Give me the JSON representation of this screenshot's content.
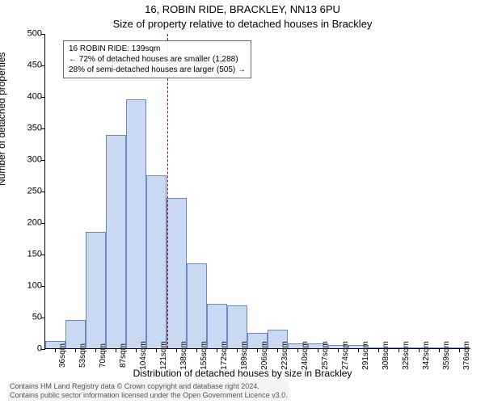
{
  "title_line1": "16, ROBIN RIDE, BRACKLEY, NN13 6PU",
  "title_line2": "Size of property relative to detached houses in Brackley",
  "ylabel": "Number of detached properties",
  "xlabel": "Distribution of detached houses by size in Brackley",
  "attribution_line1": "Contains HM Land Registry data © Crown copyright and database right 2024.",
  "attribution_line2": "Contains public sector information licensed under the Open Government Licence v3.0.",
  "chart": {
    "type": "histogram",
    "ylim": [
      0,
      500
    ],
    "ytick_step": 50,
    "xtick_start": 36,
    "xtick_step": 17,
    "xtick_count": 21,
    "xtick_unit": "sqm",
    "bar_color": "#c9d9f2",
    "bar_border": "#6a88c4",
    "reference_line_value": 139,
    "reference_line_color": "#d00000",
    "annotation": {
      "line1": "16 ROBIN RIDE: 139sqm",
      "line2": "← 72% of detached houses are smaller (1,288)",
      "line3": "28% of semi-detached houses are larger (505) →"
    },
    "bars": [
      {
        "x": 36,
        "y": 12
      },
      {
        "x": 53,
        "y": 45
      },
      {
        "x": 70,
        "y": 185
      },
      {
        "x": 86,
        "y": 338
      },
      {
        "x": 103,
        "y": 395
      },
      {
        "x": 120,
        "y": 275
      },
      {
        "x": 137,
        "y": 238
      },
      {
        "x": 154,
        "y": 135
      },
      {
        "x": 171,
        "y": 70
      },
      {
        "x": 187,
        "y": 68
      },
      {
        "x": 204,
        "y": 25
      },
      {
        "x": 221,
        "y": 30
      },
      {
        "x": 238,
        "y": 8
      },
      {
        "x": 255,
        "y": 8
      },
      {
        "x": 272,
        "y": 5
      },
      {
        "x": 288,
        "y": 5
      },
      {
        "x": 305,
        "y": 0
      },
      {
        "x": 322,
        "y": 0
      },
      {
        "x": 339,
        "y": 0
      },
      {
        "x": 356,
        "y": 0
      },
      {
        "x": 373,
        "y": 0
      }
    ]
  }
}
